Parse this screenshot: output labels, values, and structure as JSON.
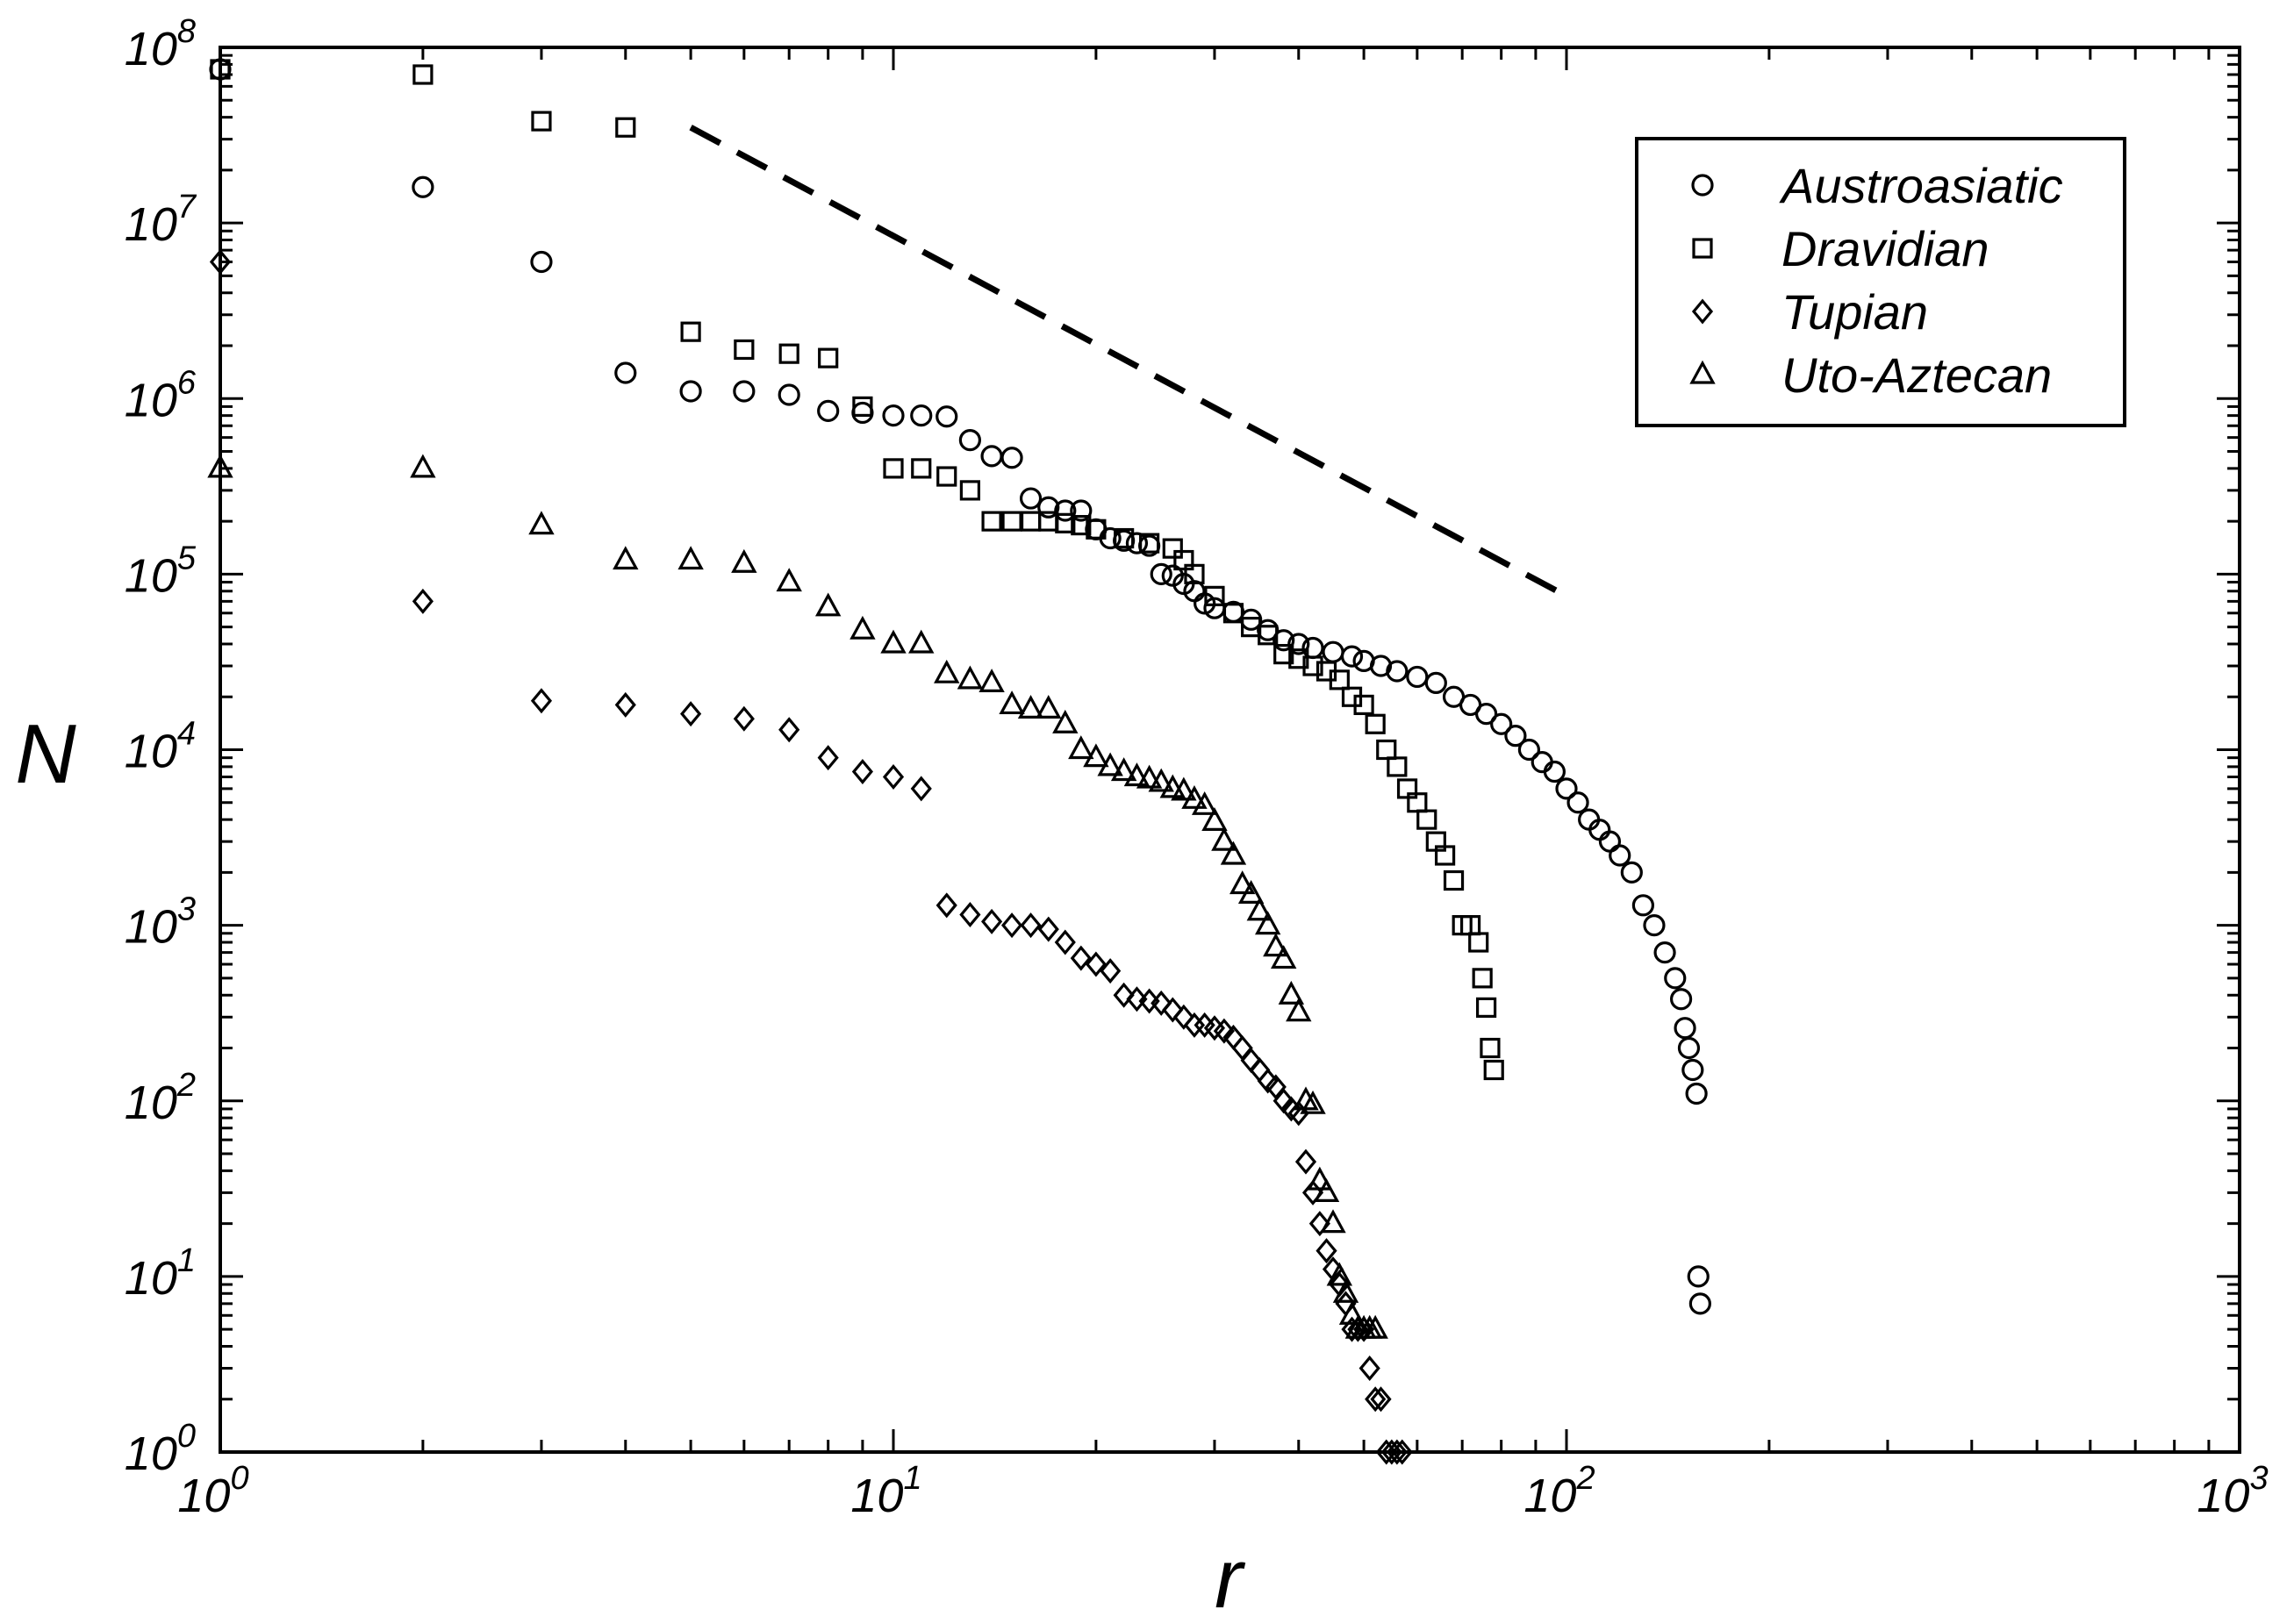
{
  "chart_data": {
    "type": "scatter",
    "xlabel": "r",
    "ylabel": "N",
    "xscale": "log",
    "yscale": "log",
    "xlim": [
      1,
      1000
    ],
    "ylim": [
      1,
      100000000
    ],
    "grid": false,
    "legend_position": "top-right",
    "x_ticks": [
      {
        "base": "10",
        "exp": "0",
        "value": 1
      },
      {
        "base": "10",
        "exp": "1",
        "value": 10
      },
      {
        "base": "10",
        "exp": "2",
        "value": 100
      },
      {
        "base": "10",
        "exp": "3",
        "value": 1000
      }
    ],
    "y_ticks": [
      {
        "base": "10",
        "exp": "0",
        "value": 1
      },
      {
        "base": "10",
        "exp": "1",
        "value": 10
      },
      {
        "base": "10",
        "exp": "2",
        "value": 100
      },
      {
        "base": "10",
        "exp": "3",
        "value": 1000
      },
      {
        "base": "10",
        "exp": "4",
        "value": 10000
      },
      {
        "base": "10",
        "exp": "5",
        "value": 100000
      },
      {
        "base": "10",
        "exp": "6",
        "value": 1000000
      },
      {
        "base": "10",
        "exp": "7",
        "value": 10000000
      },
      {
        "base": "10",
        "exp": "8",
        "value": 100000000
      }
    ],
    "reference_line": {
      "style": "dashed",
      "x": [
        5,
        100
      ],
      "y": [
        35000000,
        75000
      ]
    },
    "series": [
      {
        "name": "Austroasiatic",
        "marker": "circle",
        "points": [
          [
            1,
            75000000
          ],
          [
            2,
            16000000
          ],
          [
            3,
            6000000
          ],
          [
            4,
            1400000
          ],
          [
            5,
            1100000
          ],
          [
            6,
            1100000
          ],
          [
            7,
            1050000
          ],
          [
            8,
            850000
          ],
          [
            9,
            830000
          ],
          [
            10,
            800000
          ],
          [
            11,
            800000
          ],
          [
            12,
            790000
          ],
          [
            13,
            580000
          ],
          [
            14,
            470000
          ],
          [
            15,
            460000
          ],
          [
            16,
            270000
          ],
          [
            17,
            240000
          ],
          [
            18,
            230000
          ],
          [
            19,
            230000
          ],
          [
            20,
            180000
          ],
          [
            21,
            160000
          ],
          [
            22,
            155000
          ],
          [
            23,
            150000
          ],
          [
            24,
            145000
          ],
          [
            25,
            100000
          ],
          [
            26,
            98000
          ],
          [
            27,
            88000
          ],
          [
            28,
            80000
          ],
          [
            29,
            68000
          ],
          [
            30,
            64000
          ],
          [
            32,
            61000
          ],
          [
            34,
            55000
          ],
          [
            36,
            48000
          ],
          [
            38,
            42000
          ],
          [
            40,
            40000
          ],
          [
            42,
            38000
          ],
          [
            45,
            36000
          ],
          [
            48,
            34000
          ],
          [
            50,
            32000
          ],
          [
            53,
            30000
          ],
          [
            56,
            28000
          ],
          [
            60,
            26000
          ],
          [
            64,
            24000
          ],
          [
            68,
            20000
          ],
          [
            72,
            18000
          ],
          [
            76,
            16000
          ],
          [
            80,
            14000
          ],
          [
            84,
            12000
          ],
          [
            88,
            10000
          ],
          [
            92,
            8500
          ],
          [
            96,
            7500
          ],
          [
            100,
            6000
          ],
          [
            104,
            5000
          ],
          [
            108,
            4000
          ],
          [
            112,
            3500
          ],
          [
            116,
            3000
          ],
          [
            120,
            2500
          ],
          [
            125,
            2000
          ],
          [
            130,
            1300
          ],
          [
            135,
            1000
          ],
          [
            140,
            700
          ],
          [
            145,
            500
          ],
          [
            148,
            380
          ],
          [
            150,
            260
          ],
          [
            152,
            200
          ],
          [
            154,
            150
          ],
          [
            156,
            110
          ],
          [
            157,
            10
          ],
          [
            158,
            7
          ]
        ]
      },
      {
        "name": "Dravidian",
        "marker": "square",
        "points": [
          [
            1,
            75000000
          ],
          [
            2,
            70000000
          ],
          [
            3,
            38000000
          ],
          [
            4,
            35000000
          ],
          [
            5,
            2400000
          ],
          [
            6,
            1900000
          ],
          [
            7,
            1800000
          ],
          [
            8,
            1700000
          ],
          [
            9,
            900000
          ],
          [
            10,
            400000
          ],
          [
            11,
            400000
          ],
          [
            12,
            360000
          ],
          [
            13,
            300000
          ],
          [
            14,
            200000
          ],
          [
            15,
            200000
          ],
          [
            16,
            200000
          ],
          [
            17,
            200000
          ],
          [
            18,
            195000
          ],
          [
            19,
            190000
          ],
          [
            20,
            180000
          ],
          [
            22,
            160000
          ],
          [
            24,
            150000
          ],
          [
            26,
            140000
          ],
          [
            27,
            120000
          ],
          [
            28,
            100000
          ],
          [
            30,
            75000
          ],
          [
            32,
            60000
          ],
          [
            34,
            50000
          ],
          [
            36,
            45000
          ],
          [
            38,
            35000
          ],
          [
            40,
            33000
          ],
          [
            42,
            30000
          ],
          [
            44,
            28000
          ],
          [
            46,
            25000
          ],
          [
            48,
            20000
          ],
          [
            50,
            18000
          ],
          [
            52,
            14000
          ],
          [
            54,
            10000
          ],
          [
            56,
            8000
          ],
          [
            58,
            6000
          ],
          [
            60,
            5000
          ],
          [
            62,
            4000
          ],
          [
            64,
            3000
          ],
          [
            66,
            2500
          ],
          [
            68,
            1800
          ],
          [
            70,
            1000
          ],
          [
            72,
            1000
          ],
          [
            74,
            800
          ],
          [
            75,
            500
          ],
          [
            76,
            340
          ],
          [
            77,
            200
          ],
          [
            78,
            150
          ]
        ]
      },
      {
        "name": "Tupian",
        "marker": "diamond",
        "points": [
          [
            1,
            6000000
          ],
          [
            2,
            70000
          ],
          [
            3,
            19000
          ],
          [
            4,
            18000
          ],
          [
            5,
            16000
          ],
          [
            6,
            15000
          ],
          [
            7,
            13000
          ],
          [
            8,
            9000
          ],
          [
            9,
            7500
          ],
          [
            10,
            7000
          ],
          [
            11,
            6000
          ],
          [
            12,
            1300
          ],
          [
            13,
            1150
          ],
          [
            14,
            1050
          ],
          [
            15,
            1000
          ],
          [
            16,
            1000
          ],
          [
            17,
            950
          ],
          [
            18,
            800
          ],
          [
            19,
            650
          ],
          [
            20,
            600
          ],
          [
            21,
            550
          ],
          [
            22,
            400
          ],
          [
            23,
            380
          ],
          [
            24,
            370
          ],
          [
            25,
            360
          ],
          [
            26,
            330
          ],
          [
            27,
            300
          ],
          [
            28,
            270
          ],
          [
            29,
            270
          ],
          [
            30,
            260
          ],
          [
            31,
            250
          ],
          [
            32,
            230
          ],
          [
            33,
            200
          ],
          [
            34,
            170
          ],
          [
            35,
            150
          ],
          [
            36,
            130
          ],
          [
            37,
            120
          ],
          [
            38,
            100
          ],
          [
            39,
            90
          ],
          [
            40,
            85
          ],
          [
            41,
            45
          ],
          [
            42,
            30
          ],
          [
            43,
            20
          ],
          [
            44,
            14
          ],
          [
            45,
            11
          ],
          [
            46,
            9
          ],
          [
            47,
            7
          ],
          [
            48,
            5
          ],
          [
            49,
            5
          ],
          [
            50,
            5
          ],
          [
            51,
            3
          ],
          [
            52,
            2
          ],
          [
            53,
            2
          ],
          [
            54,
            1
          ],
          [
            55,
            1
          ],
          [
            56,
            1
          ],
          [
            57,
            1
          ]
        ]
      },
      {
        "name": "Uto-Aztecan",
        "marker": "triangle",
        "points": [
          [
            1,
            400000
          ],
          [
            2,
            400000
          ],
          [
            3,
            190000
          ],
          [
            4,
            120000
          ],
          [
            5,
            120000
          ],
          [
            6,
            115000
          ],
          [
            7,
            90000
          ],
          [
            8,
            65000
          ],
          [
            9,
            48000
          ],
          [
            10,
            40000
          ],
          [
            11,
            40000
          ],
          [
            12,
            27000
          ],
          [
            13,
            25000
          ],
          [
            14,
            24000
          ],
          [
            15,
            18000
          ],
          [
            16,
            17000
          ],
          [
            17,
            17000
          ],
          [
            18,
            14000
          ],
          [
            19,
            10000
          ],
          [
            20,
            9000
          ],
          [
            21,
            8000
          ],
          [
            22,
            7500
          ],
          [
            23,
            7000
          ],
          [
            24,
            6800
          ],
          [
            25,
            6500
          ],
          [
            26,
            6000
          ],
          [
            27,
            5800
          ],
          [
            28,
            5200
          ],
          [
            29,
            4800
          ],
          [
            30,
            3900
          ],
          [
            31,
            3000
          ],
          [
            32,
            2500
          ],
          [
            33,
            1700
          ],
          [
            34,
            1500
          ],
          [
            35,
            1200
          ],
          [
            36,
            1000
          ],
          [
            37,
            750
          ],
          [
            38,
            640
          ],
          [
            39,
            400
          ],
          [
            40,
            320
          ],
          [
            41,
            100
          ],
          [
            42,
            95
          ],
          [
            43,
            35
          ],
          [
            44,
            30
          ],
          [
            45,
            20
          ],
          [
            46,
            10
          ],
          [
            47,
            8
          ],
          [
            48,
            6
          ],
          [
            49,
            5
          ],
          [
            50,
            5
          ],
          [
            51,
            5
          ],
          [
            52,
            5
          ]
        ]
      }
    ]
  }
}
